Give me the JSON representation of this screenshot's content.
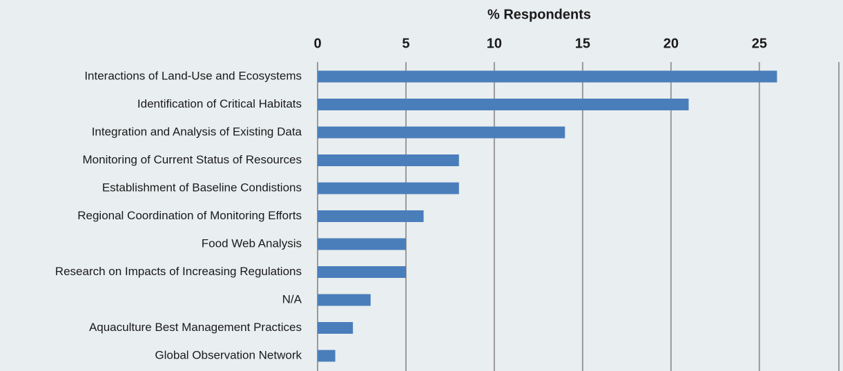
{
  "chart_data": {
    "type": "bar",
    "orientation": "horizontal",
    "xlabel": "% Respondents",
    "categories": [
      "Interactions of Land-Use and Ecosystems",
      "Identification of Critical Habitats",
      "Integration and Analysis of Existing Data",
      "Monitoring of Current Status of Resources",
      "Establishment of Baseline Condistions",
      "Regional Coordination of Monitoring Efforts",
      "Food Web Analysis",
      "Research on Impacts of Increasing Regulations",
      "N/A",
      "Aquaculture Best Management Practices",
      "Global Observation Network"
    ],
    "values": [
      26,
      21,
      14,
      8,
      8,
      6,
      5,
      5,
      3,
      2,
      1
    ],
    "color": "#4a7ebb",
    "xlim": [
      0,
      29.5
    ],
    "xticks": [
      0,
      5,
      10,
      15,
      20,
      25
    ],
    "grid": true
  }
}
